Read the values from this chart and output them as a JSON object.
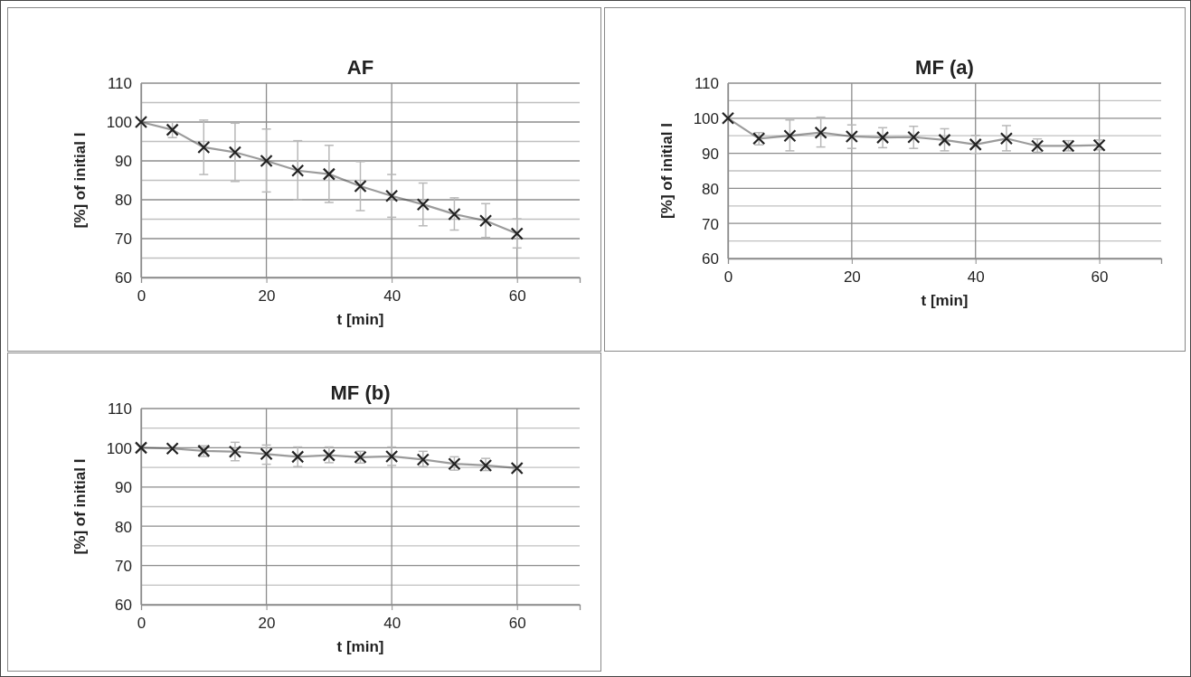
{
  "chart_data": [
    {
      "type": "line",
      "title": "AF",
      "xlabel": "t [min]",
      "ylabel": "[%] of initial I",
      "marker": "cross",
      "grid": true,
      "xlim": [
        0,
        70
      ],
      "xticks": [
        0,
        20,
        40,
        60
      ],
      "ylim": [
        60,
        110
      ],
      "yticks": [
        60,
        {
          "value": 65,
          "label": null
        },
        70,
        {
          "value": 75,
          "label": null
        },
        80,
        {
          "value": 85,
          "label": null
        },
        90,
        {
          "value": 95,
          "label": null
        },
        100,
        {
          "value": 105,
          "label": null
        },
        110
      ],
      "x": [
        0,
        5,
        10,
        15,
        20,
        25,
        30,
        35,
        40,
        45,
        50,
        55,
        60
      ],
      "series": [
        {
          "color": "#222222",
          "values": [
            100,
            98,
            93.5,
            92.2,
            90,
            87.5,
            86.6,
            83.5,
            81,
            78.8,
            76.3,
            74.6,
            71.3
          ],
          "errors": [
            null,
            [
              96,
              100
            ],
            [
              86.5,
              100.5
            ],
            [
              84.7,
              99.7
            ],
            [
              82,
              98.2
            ],
            [
              80,
              95.2
            ],
            [
              79.3,
              94
            ],
            [
              77.2,
              89.8
            ],
            [
              75.5,
              86.5
            ],
            [
              73.3,
              84.3
            ],
            [
              72.2,
              80.5
            ],
            [
              70.3,
              79
            ],
            [
              67.6,
              75.1
            ]
          ]
        }
      ]
    },
    {
      "type": "line",
      "title": "MF (a)",
      "xlabel": "t [min]",
      "ylabel": "[%] of initial I",
      "marker": "cross",
      "grid": true,
      "xlim": [
        0,
        70
      ],
      "xticks": [
        0,
        20,
        40,
        60
      ],
      "ylim": [
        60,
        110
      ],
      "yticks": [
        60,
        {
          "value": 65,
          "label": null
        },
        70,
        {
          "value": 75,
          "label": null
        },
        80,
        {
          "value": 85,
          "label": null
        },
        90,
        {
          "value": 95,
          "label": null
        },
        100,
        {
          "value": 105,
          "label": null
        },
        110
      ],
      "x": [
        0,
        5,
        10,
        15,
        20,
        25,
        30,
        35,
        40,
        45,
        50,
        55,
        60
      ],
      "series": [
        {
          "color": "#222222",
          "values": [
            100,
            94.2,
            95,
            95.9,
            94.8,
            94.5,
            94.6,
            93.8,
            92.5,
            94.2,
            92.1,
            92.1,
            92.3
          ],
          "errors": [
            null,
            [
              92.4,
              95.9
            ],
            [
              90.7,
              99.5
            ],
            [
              91.8,
              100.3
            ],
            [
              91.4,
              98.1
            ],
            [
              91.6,
              97.3
            ],
            [
              91.4,
              97.7
            ],
            [
              90.7,
              97
            ],
            [
              90,
              95.1
            ],
            [
              90.7,
              97.9
            ],
            [
              90.3,
              94.1
            ],
            [
              90.7,
              93.6
            ],
            [
              91,
              93.8
            ]
          ]
        }
      ]
    },
    {
      "type": "line",
      "title": "MF (b)",
      "xlabel": "t [min]",
      "ylabel": "[%] of initial I",
      "marker": "cross",
      "grid": true,
      "xlim": [
        0,
        70
      ],
      "xticks": [
        0,
        20,
        40,
        60
      ],
      "ylim": [
        60,
        110
      ],
      "yticks": [
        60,
        {
          "value": 65,
          "label": null
        },
        70,
        {
          "value": 75,
          "label": null
        },
        80,
        {
          "value": 85,
          "label": null
        },
        90,
        {
          "value": 95,
          "label": null
        },
        100,
        {
          "value": 105,
          "label": null
        },
        110
      ],
      "x": [
        0,
        5,
        10,
        15,
        20,
        25,
        30,
        35,
        40,
        45,
        50,
        55,
        60
      ],
      "series": [
        {
          "color": "#222222",
          "values": [
            100,
            99.8,
            99.2,
            99,
            98.4,
            97.7,
            98.1,
            97.6,
            97.8,
            97,
            95.9,
            95.5,
            94.8
          ],
          "errors": [
            null,
            null,
            [
              97.8,
              100.5
            ],
            [
              96.7,
              101.4
            ],
            [
              95.8,
              100.7
            ],
            [
              95.2,
              100.2
            ],
            [
              96.2,
              100.2
            ],
            [
              96.1,
              99.1
            ],
            [
              95.5,
              100.2
            ],
            [
              95.2,
              99.1
            ],
            [
              94.3,
              97.7
            ],
            [
              94.2,
              97.3
            ],
            [
              94.3,
              95.3
            ]
          ]
        }
      ]
    }
  ]
}
